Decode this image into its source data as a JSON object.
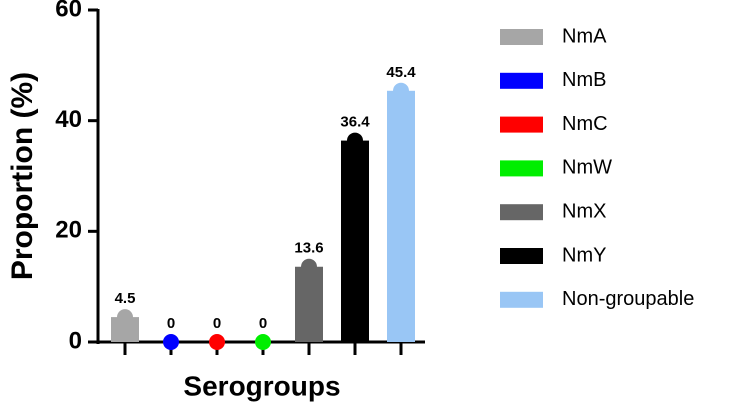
{
  "chart_data": {
    "type": "bar",
    "xlabel": "Serogroups",
    "ylabel": "Proportion (%)",
    "categories": [
      "NmA",
      "NmB",
      "NmC",
      "NmW",
      "NmX",
      "NmY",
      "Non-groupable"
    ],
    "values": [
      4.5,
      0,
      0,
      0,
      13.6,
      36.4,
      45.4
    ],
    "colors": [
      "#a6a6a6",
      "#0000ff",
      "#ff0000",
      "#00ee00",
      "#666666",
      "#000000",
      "#99c6f5"
    ],
    "ylim": [
      0,
      60
    ],
    "yticks": [
      0,
      20,
      40,
      60
    ],
    "legend": "right"
  }
}
